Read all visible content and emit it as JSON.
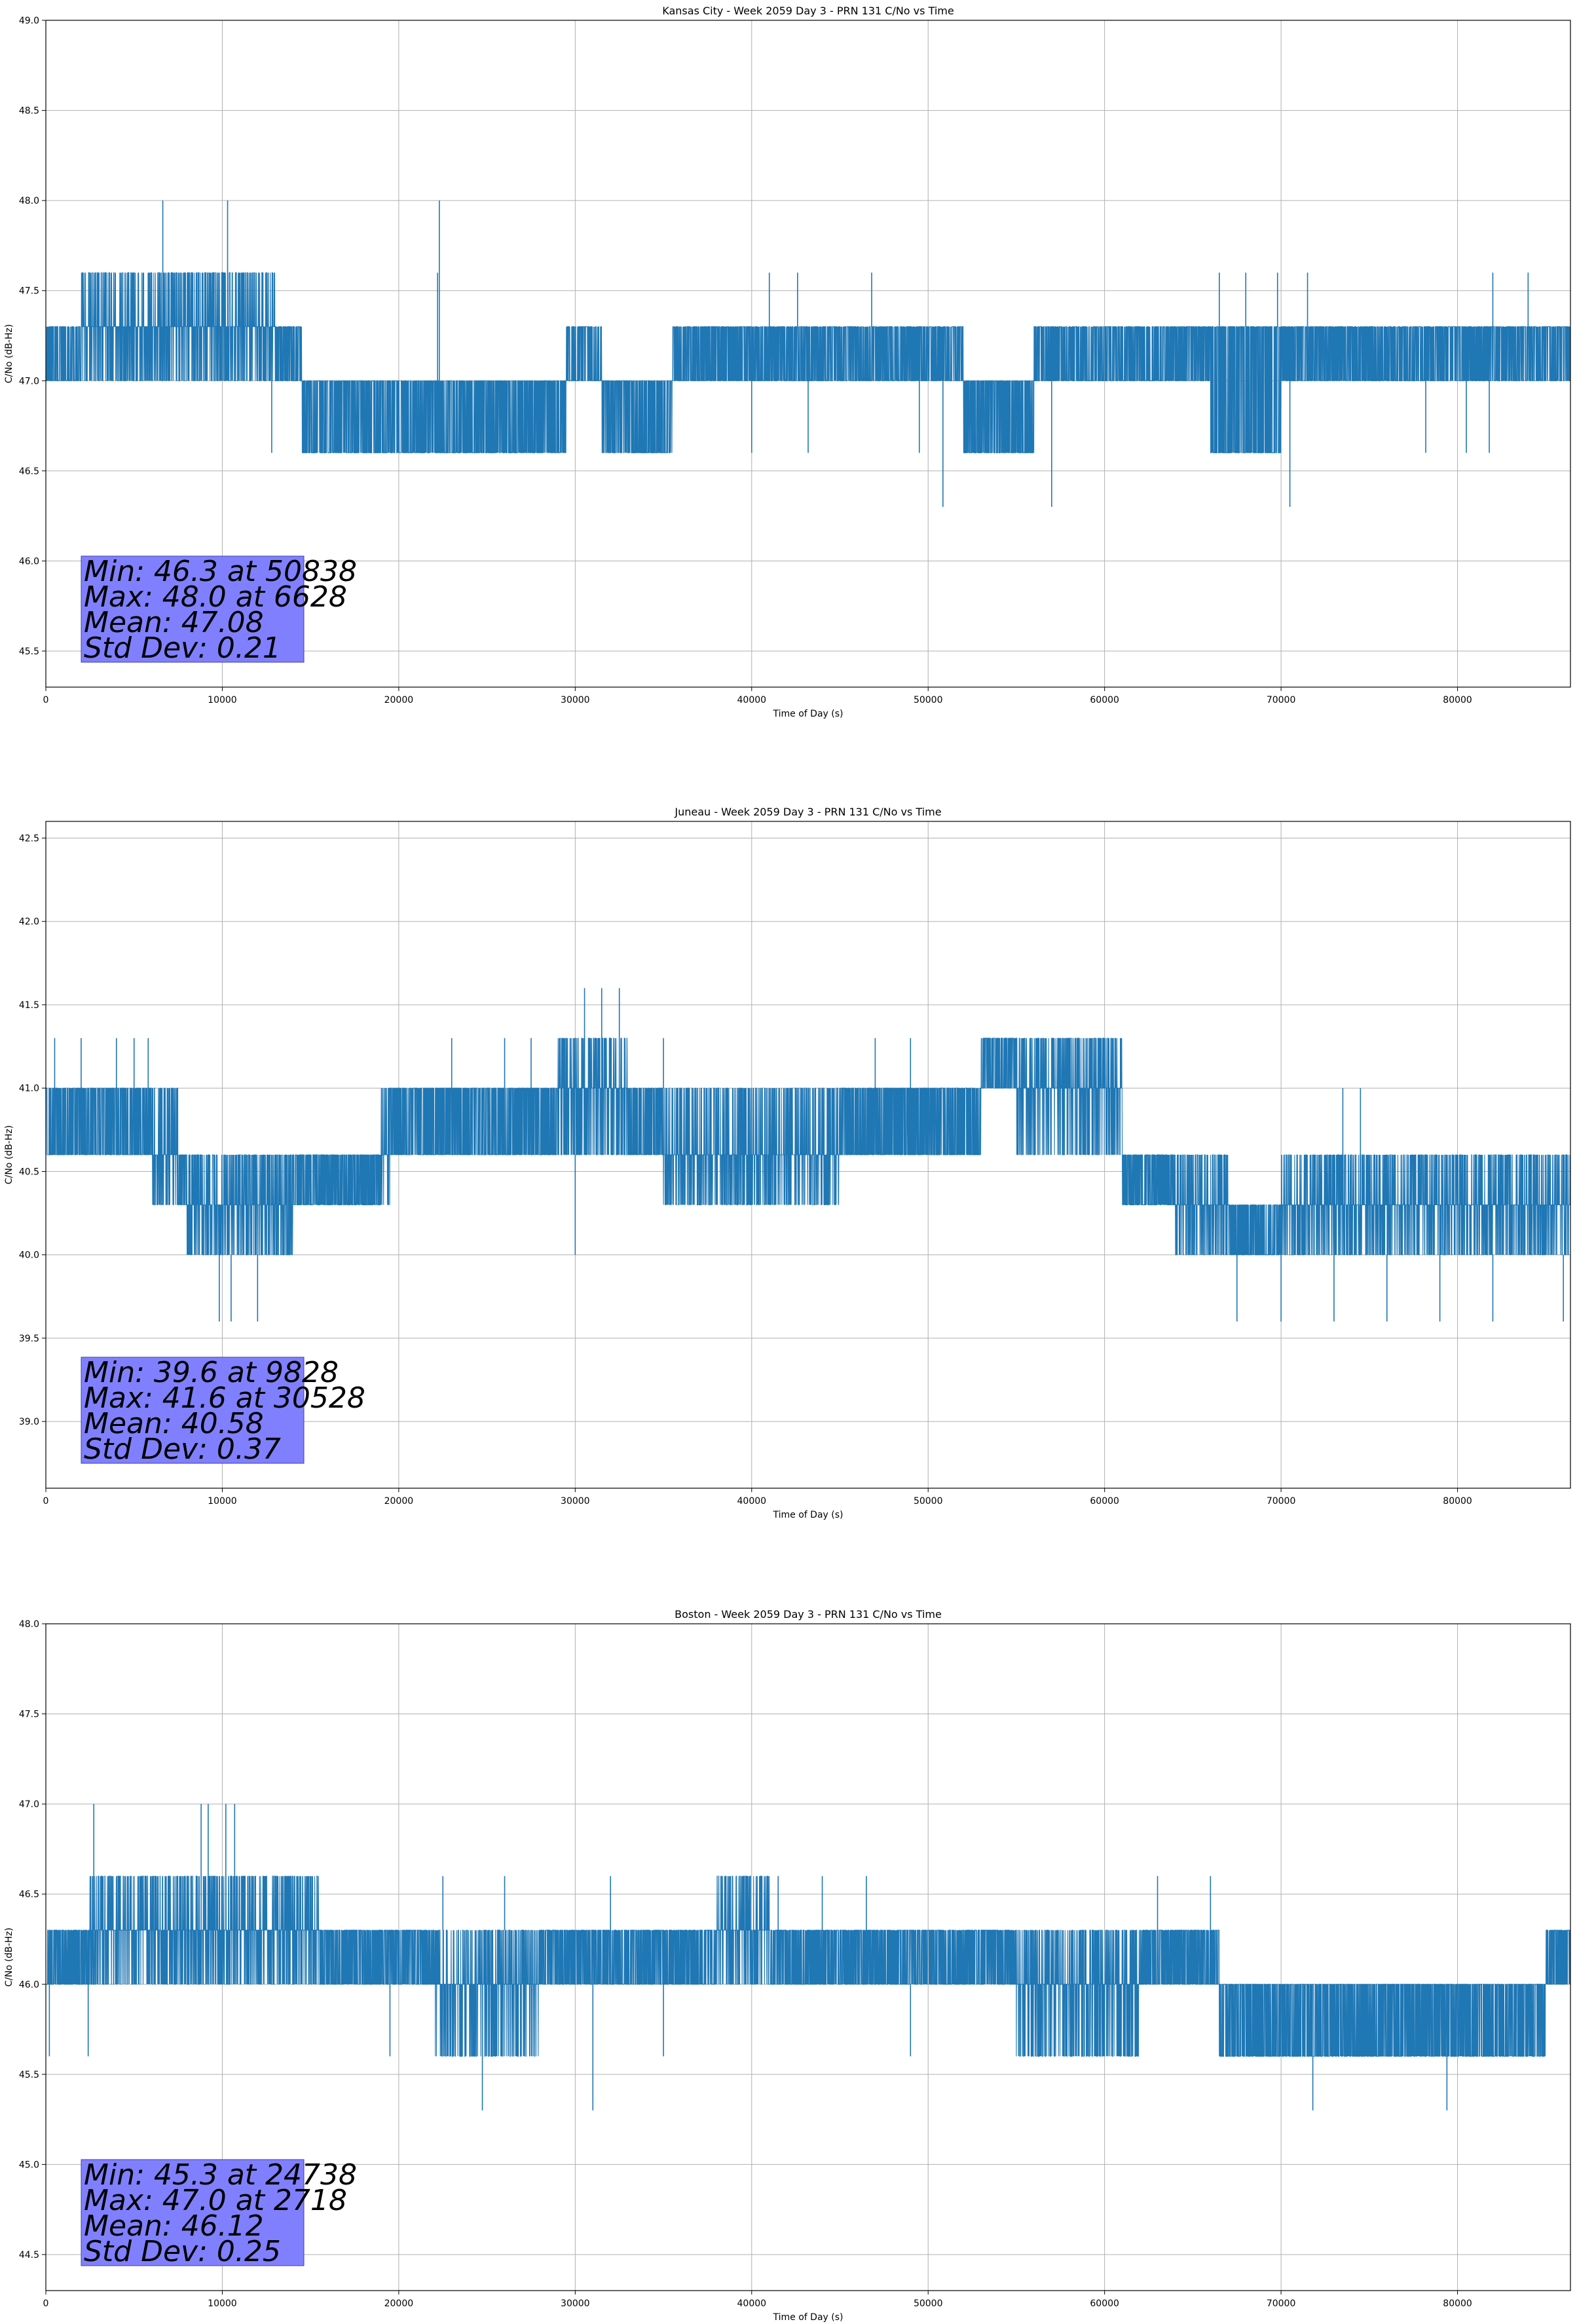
{
  "figure": {
    "colors": {
      "series": "#1f77b4",
      "grid": "#b0b0b0",
      "stats_box": "#8080ff",
      "axes": "#000000"
    }
  },
  "chart_data": [
    {
      "type": "line",
      "title": "Kansas City - Week 2059 Day 3 - PRN 131 C/No vs Time",
      "xlabel": "Time of Day (s)",
      "ylabel": "C/No (dB-Hz)",
      "xlim": [
        0,
        86400
      ],
      "ylim": [
        45.3,
        49.0
      ],
      "xticks": [
        0,
        10000,
        20000,
        30000,
        40000,
        50000,
        60000,
        70000,
        80000
      ],
      "yticks": [
        45.5,
        46.0,
        46.5,
        47.0,
        47.5,
        48.0,
        48.5,
        49.0
      ],
      "ytick_labels": [
        "45.5",
        "46.0",
        "46.5",
        "47.0",
        "47.5",
        "48.0",
        "48.5",
        "49.0"
      ],
      "grid": true,
      "series": [
        {
          "name": "C/No",
          "x_sample_step_s": 10
        }
      ],
      "bands": [
        {
          "x": [
            0,
            13000
          ],
          "lo": 47.0,
          "hi": 47.3
        },
        {
          "x": [
            2000,
            13000
          ],
          "lo": 47.3,
          "hi": 47.6
        },
        {
          "x": [
            13000,
            14500
          ],
          "lo": 47.0,
          "hi": 47.3
        },
        {
          "x": [
            14500,
            29500
          ],
          "lo": 46.6,
          "hi": 47.0
        },
        {
          "x": [
            29500,
            31500
          ],
          "lo": 47.0,
          "hi": 47.3
        },
        {
          "x": [
            31500,
            35500
          ],
          "lo": 46.6,
          "hi": 47.0
        },
        {
          "x": [
            35500,
            52000
          ],
          "lo": 47.0,
          "hi": 47.3
        },
        {
          "x": [
            52000,
            56000
          ],
          "lo": 46.6,
          "hi": 47.0
        },
        {
          "x": [
            56000,
            66000
          ],
          "lo": 47.0,
          "hi": 47.3
        },
        {
          "x": [
            66000,
            70000
          ],
          "lo": 46.6,
          "hi": 47.3
        },
        {
          "x": [
            70000,
            86400
          ],
          "lo": 47.0,
          "hi": 47.3
        }
      ],
      "spikes": [
        {
          "x": 6628,
          "y": 48.0
        },
        {
          "x": 10300,
          "y": 48.0
        },
        {
          "x": 22300,
          "y": 48.0
        },
        {
          "x": 22200,
          "y": 47.6
        },
        {
          "x": 41000,
          "y": 47.6
        },
        {
          "x": 42600,
          "y": 47.6
        },
        {
          "x": 46800,
          "y": 47.6
        },
        {
          "x": 66500,
          "y": 47.6
        },
        {
          "x": 68000,
          "y": 47.6
        },
        {
          "x": 69800,
          "y": 47.6
        },
        {
          "x": 71500,
          "y": 47.6
        },
        {
          "x": 82000,
          "y": 47.6
        },
        {
          "x": 84000,
          "y": 47.6
        },
        {
          "x": 50838,
          "y": 46.3
        },
        {
          "x": 57000,
          "y": 46.3
        },
        {
          "x": 70500,
          "y": 46.3
        },
        {
          "x": 12800,
          "y": 46.6
        },
        {
          "x": 40000,
          "y": 46.6
        },
        {
          "x": 43200,
          "y": 46.6
        },
        {
          "x": 49500,
          "y": 46.6
        },
        {
          "x": 78200,
          "y": 46.6
        },
        {
          "x": 80500,
          "y": 46.6
        },
        {
          "x": 81800,
          "y": 46.6
        },
        {
          "x": 8500,
          "y": 47.0
        },
        {
          "x": 33000,
          "y": 47.0
        }
      ],
      "stats": {
        "min_line": "Min: 46.3 at 50838",
        "max_line": "Max: 48.0 at 6628",
        "mean_line": "Mean: 47.08",
        "std_line": "Std Dev: 0.21"
      }
    },
    {
      "type": "line",
      "title": "Juneau - Week 2059 Day 3 - PRN 131 C/No vs Time",
      "xlabel": "Time of Day (s)",
      "ylabel": "C/No (dB-Hz)",
      "xlim": [
        0,
        86400
      ],
      "ylim": [
        38.6,
        42.6
      ],
      "xticks": [
        0,
        10000,
        20000,
        30000,
        40000,
        50000,
        60000,
        70000,
        80000
      ],
      "yticks": [
        39.0,
        39.5,
        40.0,
        40.5,
        41.0,
        41.5,
        42.0,
        42.5
      ],
      "ytick_labels": [
        "39.0",
        "39.5",
        "40.0",
        "40.5",
        "41.0",
        "41.5",
        "42.0",
        "42.5"
      ],
      "grid": true,
      "series": [
        {
          "name": "C/No",
          "x_sample_step_s": 10
        }
      ],
      "bands": [
        {
          "x": [
            0,
            7500
          ],
          "lo": 40.6,
          "hi": 41.0
        },
        {
          "x": [
            6000,
            10000
          ],
          "lo": 40.3,
          "hi": 40.6
        },
        {
          "x": [
            8000,
            14000
          ],
          "lo": 40.0,
          "hi": 40.3
        },
        {
          "x": [
            10000,
            19500
          ],
          "lo": 40.3,
          "hi": 40.6
        },
        {
          "x": [
            19000,
            53000
          ],
          "lo": 40.6,
          "hi": 41.0
        },
        {
          "x": [
            29000,
            33000
          ],
          "lo": 41.0,
          "hi": 41.3
        },
        {
          "x": [
            35000,
            45000
          ],
          "lo": 40.3,
          "hi": 40.6
        },
        {
          "x": [
            53000,
            61000
          ],
          "lo": 41.0,
          "hi": 41.3
        },
        {
          "x": [
            55000,
            61000
          ],
          "lo": 40.6,
          "hi": 41.0
        },
        {
          "x": [
            61000,
            67000
          ],
          "lo": 40.3,
          "hi": 40.6
        },
        {
          "x": [
            64000,
            86400
          ],
          "lo": 40.0,
          "hi": 40.3
        },
        {
          "x": [
            70000,
            86400
          ],
          "lo": 40.3,
          "hi": 40.6
        }
      ],
      "spikes": [
        {
          "x": 500,
          "y": 41.3
        },
        {
          "x": 2000,
          "y": 41.3
        },
        {
          "x": 4000,
          "y": 41.3
        },
        {
          "x": 5000,
          "y": 41.3
        },
        {
          "x": 5800,
          "y": 41.3
        },
        {
          "x": 9828,
          "y": 39.6
        },
        {
          "x": 10500,
          "y": 39.6
        },
        {
          "x": 12000,
          "y": 39.6
        },
        {
          "x": 30528,
          "y": 41.6
        },
        {
          "x": 31500,
          "y": 41.6
        },
        {
          "x": 32500,
          "y": 41.6
        },
        {
          "x": 23000,
          "y": 41.3
        },
        {
          "x": 26000,
          "y": 41.3
        },
        {
          "x": 27500,
          "y": 41.3
        },
        {
          "x": 35000,
          "y": 41.3
        },
        {
          "x": 47000,
          "y": 41.3
        },
        {
          "x": 49000,
          "y": 41.3
        },
        {
          "x": 30000,
          "y": 40.0
        },
        {
          "x": 40500,
          "y": 40.3
        },
        {
          "x": 67500,
          "y": 39.6
        },
        {
          "x": 70000,
          "y": 39.6
        },
        {
          "x": 73000,
          "y": 39.6
        },
        {
          "x": 76000,
          "y": 39.6
        },
        {
          "x": 79000,
          "y": 39.6
        },
        {
          "x": 82000,
          "y": 39.6
        },
        {
          "x": 86000,
          "y": 39.6
        },
        {
          "x": 73500,
          "y": 41.0
        },
        {
          "x": 74500,
          "y": 41.0
        },
        {
          "x": 66000,
          "y": 40.0
        }
      ],
      "stats": {
        "min_line": "Min: 39.6 at 9828",
        "max_line": "Max: 41.6 at 30528",
        "mean_line": "Mean: 40.58",
        "std_line": "Std Dev: 0.37"
      }
    },
    {
      "type": "line",
      "title": "Boston - Week 2059 Day 3 - PRN 131 C/No vs Time",
      "xlabel": "Time of Day (s)",
      "ylabel": "C/No (dB-Hz)",
      "xlim": [
        0,
        86400
      ],
      "ylim": [
        44.3,
        48.0
      ],
      "xticks": [
        0,
        10000,
        20000,
        30000,
        40000,
        50000,
        60000,
        70000,
        80000
      ],
      "yticks": [
        44.5,
        45.0,
        45.5,
        46.0,
        46.5,
        47.0,
        47.5,
        48.0
      ],
      "ytick_labels": [
        "44.5",
        "45.0",
        "45.5",
        "46.0",
        "46.5",
        "47.0",
        "47.5",
        "48.0"
      ],
      "grid": true,
      "series": [
        {
          "name": "C/No",
          "x_sample_step_s": 10
        }
      ],
      "bands": [
        {
          "x": [
            0,
            13500
          ],
          "lo": 46.0,
          "hi": 46.3
        },
        {
          "x": [
            2500,
            15500
          ],
          "lo": 46.3,
          "hi": 46.6
        },
        {
          "x": [
            13500,
            55000
          ],
          "lo": 46.0,
          "hi": 46.3
        },
        {
          "x": [
            22000,
            28000
          ],
          "lo": 45.6,
          "hi": 46.0
        },
        {
          "x": [
            38000,
            41000
          ],
          "lo": 46.3,
          "hi": 46.6
        },
        {
          "x": [
            55000,
            62000
          ],
          "lo": 45.6,
          "hi": 46.0
        },
        {
          "x": [
            55000,
            66500
          ],
          "lo": 46.0,
          "hi": 46.3
        },
        {
          "x": [
            66500,
            85000
          ],
          "lo": 45.6,
          "hi": 46.0
        },
        {
          "x": [
            85000,
            86400
          ],
          "lo": 46.0,
          "hi": 46.3
        }
      ],
      "spikes": [
        {
          "x": 2718,
          "y": 47.0
        },
        {
          "x": 8800,
          "y": 47.0
        },
        {
          "x": 9200,
          "y": 47.0
        },
        {
          "x": 10200,
          "y": 47.0
        },
        {
          "x": 10700,
          "y": 47.0
        },
        {
          "x": 24738,
          "y": 45.3
        },
        {
          "x": 31000,
          "y": 45.3
        },
        {
          "x": 71800,
          "y": 45.3
        },
        {
          "x": 79400,
          "y": 45.3
        },
        {
          "x": 200,
          "y": 45.6
        },
        {
          "x": 2400,
          "y": 45.6
        },
        {
          "x": 19500,
          "y": 45.6
        },
        {
          "x": 35000,
          "y": 45.6
        },
        {
          "x": 49000,
          "y": 45.6
        },
        {
          "x": 63000,
          "y": 46.6
        },
        {
          "x": 66000,
          "y": 46.6
        },
        {
          "x": 41500,
          "y": 46.6
        },
        {
          "x": 44000,
          "y": 46.6
        },
        {
          "x": 46500,
          "y": 46.6
        },
        {
          "x": 22500,
          "y": 46.6
        },
        {
          "x": 26000,
          "y": 46.6
        },
        {
          "x": 32000,
          "y": 46.6
        }
      ],
      "stats": {
        "min_line": "Min: 45.3 at 24738",
        "max_line": "Max: 47.0 at 2718",
        "mean_line": "Mean: 46.12",
        "std_line": "Std Dev: 0.25"
      }
    }
  ]
}
